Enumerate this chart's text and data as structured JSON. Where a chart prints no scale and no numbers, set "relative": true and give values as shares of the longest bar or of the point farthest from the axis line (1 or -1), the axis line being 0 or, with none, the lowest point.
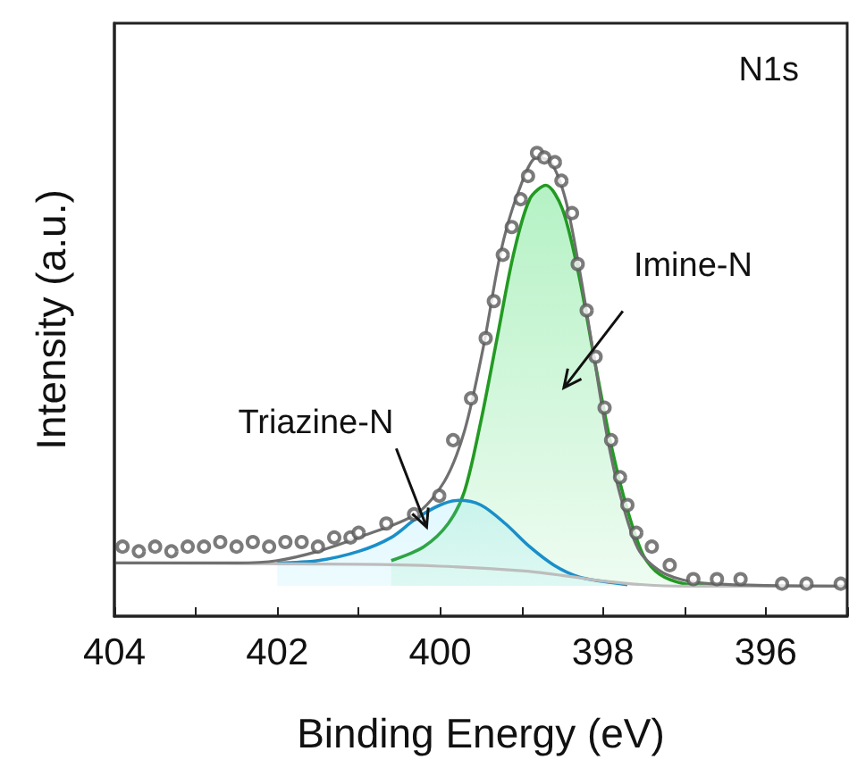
{
  "chart_data": {
    "type": "line",
    "title": "N1s",
    "xlabel": "Binding Energy (eV)",
    "ylabel": "Intensity (a.u.)",
    "relative": true,
    "tick_labels": "x",
    "grid": false,
    "legend": false,
    "xlim": [
      404,
      395
    ],
    "xticks": [
      404,
      {
        "value": 403,
        "label": null
      },
      402,
      {
        "value": 401,
        "label": null
      },
      400,
      {
        "value": 399,
        "label": null
      },
      398,
      {
        "value": 397,
        "label": null
      },
      396,
      {
        "value": 395,
        "label": null
      }
    ],
    "series": [
      {
        "type": "area",
        "name": "Imine-N",
        "color": "#239a23",
        "x": [
          400.6,
          400.2,
          399.9,
          399.7,
          399.5,
          399.3,
          399.1,
          398.9,
          398.7,
          398.5,
          398.3,
          398.1,
          397.9,
          397.7,
          397.5,
          397.3,
          397.0,
          396.6
        ],
        "values": [
          0.12,
          0.15,
          0.2,
          0.27,
          0.42,
          0.6,
          0.78,
          0.9,
          0.93,
          0.88,
          0.74,
          0.55,
          0.37,
          0.23,
          0.13,
          0.09,
          0.07,
          0.065
        ]
      },
      {
        "type": "area",
        "name": "Triazine-N",
        "color": "#1a8fc9",
        "x": [
          402,
          401.5,
          401,
          400.6,
          400.3,
          400,
          399.77,
          399.5,
          399.2,
          398.9,
          398.6,
          398.3,
          398,
          397.7
        ],
        "values": [
          0.115,
          0.12,
          0.14,
          0.17,
          0.21,
          0.24,
          0.25,
          0.24,
          0.2,
          0.15,
          0.11,
          0.085,
          0.075,
          0.068
        ]
      },
      {
        "color": "#bdbdbd",
        "x": [
          404,
          401,
          400,
          399,
          398.5,
          398,
          397.5,
          397,
          395
        ],
        "values": [
          0.115,
          0.112,
          0.108,
          0.098,
          0.088,
          0.076,
          0.068,
          0.065,
          0.065
        ]
      },
      {
        "color": "#707070",
        "x": [
          404,
          402.5,
          402,
          401.5,
          401,
          400.3,
          399.95,
          399.7,
          399.47,
          399.25,
          399.03,
          398.81,
          398.64,
          398.46,
          398.29,
          398.11,
          397.94,
          397.77,
          397.55,
          397.22,
          396.68,
          395
        ],
        "values": [
          0.115,
          0.115,
          0.12,
          0.14,
          0.17,
          0.22,
          0.29,
          0.4,
          0.58,
          0.79,
          0.92,
          0.99,
          0.98,
          0.9,
          0.75,
          0.56,
          0.38,
          0.25,
          0.14,
          0.09,
          0.07,
          0.065
        ]
      },
      {
        "type": "scatter",
        "color": "#5a5a5a",
        "marker": "circle",
        "x": [
          403.9,
          403.7,
          403.5,
          403.3,
          403.1,
          402.9,
          402.7,
          402.5,
          402.3,
          402.1,
          401.9,
          401.7,
          401.5,
          401.3,
          401.1,
          401.0,
          400.66,
          400.32,
          400.01,
          399.84,
          399.62,
          399.44,
          399.34,
          399.23,
          399.12,
          399.01,
          398.92,
          398.81,
          398.72,
          398.59,
          398.51,
          398.38,
          398.31,
          398.2,
          398.09,
          397.98,
          397.9,
          397.79,
          397.7,
          397.59,
          397.4,
          397.18,
          396.89,
          396.6,
          396.31,
          395.8,
          395.5,
          395.08
        ],
        "values": [
          0.15,
          0.14,
          0.15,
          0.14,
          0.15,
          0.15,
          0.16,
          0.15,
          0.16,
          0.15,
          0.16,
          0.16,
          0.15,
          0.17,
          0.17,
          0.18,
          0.2,
          0.22,
          0.26,
          0.38,
          0.47,
          0.6,
          0.68,
          0.78,
          0.84,
          0.9,
          0.95,
          1.0,
          0.99,
          0.98,
          0.94,
          0.87,
          0.76,
          0.66,
          0.56,
          0.45,
          0.38,
          0.3,
          0.24,
          0.18,
          0.15,
          0.11,
          0.08,
          0.08,
          0.08,
          0.07,
          0.07,
          0.07
        ]
      }
    ]
  }
}
